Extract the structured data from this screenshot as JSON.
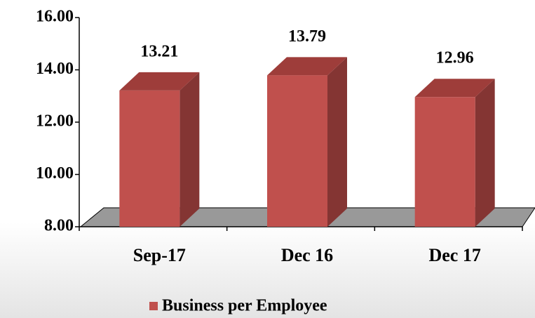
{
  "chart_data": {
    "type": "bar3d",
    "categories": [
      "Sep-17",
      "Dec 16",
      "Dec 17"
    ],
    "series": [
      {
        "name": "Business per Employee",
        "color": "#c0504d",
        "values": [
          13.21,
          13.79,
          12.96
        ]
      }
    ],
    "ylim": [
      8,
      16
    ],
    "yticks": [
      {
        "value": 8,
        "label": "8.00"
      },
      {
        "value": 10,
        "label": "10.00"
      },
      {
        "value": 12,
        "label": "12.00"
      },
      {
        "value": 14,
        "label": "14.00"
      },
      {
        "value": 16,
        "label": "16.00"
      }
    ]
  }
}
